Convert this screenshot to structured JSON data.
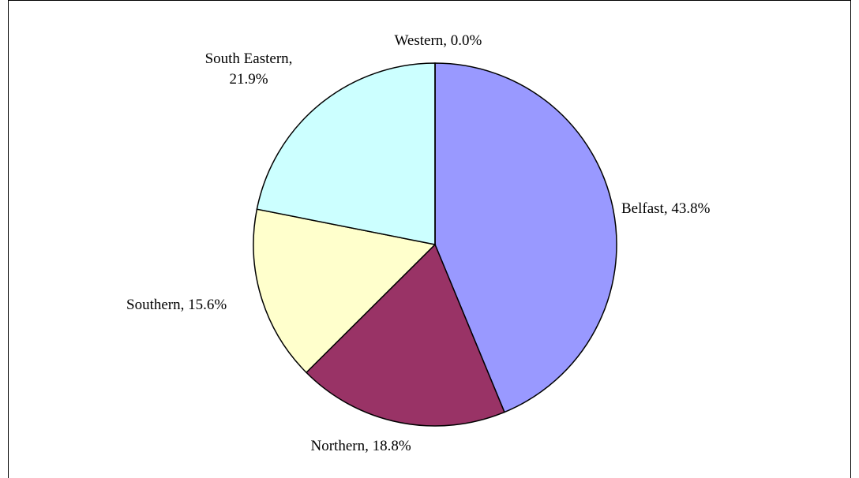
{
  "chart_data": {
    "type": "pie",
    "values": [
      43.8,
      18.8,
      15.6,
      21.9,
      0.0
    ],
    "value_labels": [
      "Belfast, 43.8%",
      "Northern, 18.8%",
      "Southern, 15.6%",
      "South Eastern, 21.9%",
      "Western, 0.0%"
    ],
    "colors": [
      "#9999ff",
      "#993366",
      "#ffffcc",
      "#ccffff",
      "#660066"
    ]
  }
}
